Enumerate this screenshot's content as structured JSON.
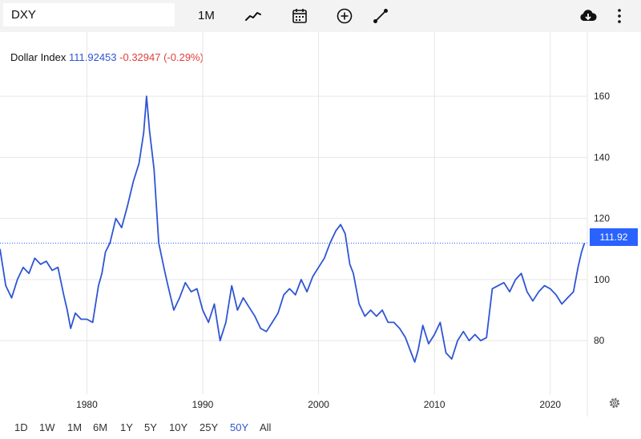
{
  "toolbar": {
    "symbol": "DXY",
    "interval": "1M",
    "icons": [
      "indicators-icon",
      "calendar-icon",
      "add-compare-icon",
      "drawing-tool-icon",
      "download-icon",
      "more-icon"
    ]
  },
  "legend": {
    "name": "Dollar Index",
    "price": "111.92453",
    "change": "-0.32947 (-0.29%)"
  },
  "last_price_label": "111.92",
  "colors": {
    "line": "#2f55d4",
    "accent": "#2962ff",
    "negative": "#e0403c",
    "grid": "#e6e6e6"
  },
  "range_buttons": [
    {
      "label": "1D"
    },
    {
      "label": "1W"
    },
    {
      "label": "1M"
    },
    {
      "label": "6M"
    },
    {
      "label": "1Y"
    },
    {
      "label": "5Y"
    },
    {
      "label": "10Y"
    },
    {
      "label": "25Y"
    },
    {
      "label": "50Y"
    },
    {
      "label": "All"
    }
  ],
  "active_range": "50Y",
  "chart_data": {
    "type": "line",
    "title": "",
    "xlabel": "",
    "ylabel": "",
    "xlim": [
      1972.5,
      2023.2
    ],
    "ylim": [
      62.5,
      181
    ],
    "x_ticks": [
      1980,
      1990,
      2000,
      2010,
      2020
    ],
    "y_ticks": [
      80,
      100,
      120,
      140,
      160
    ],
    "grid": true,
    "last_value": 111.92,
    "series": [
      {
        "name": "",
        "x": [
          1972.5,
          1973.0,
          1973.5,
          1974.0,
          1974.5,
          1975.0,
          1975.5,
          1976.0,
          1976.5,
          1977.0,
          1977.5,
          1978.0,
          1978.3,
          1978.6,
          1979.0,
          1979.5,
          1980.0,
          1980.5,
          1981.0,
          1981.3,
          1981.6,
          1982.0,
          1982.5,
          1983.0,
          1983.5,
          1984.0,
          1984.5,
          1984.9,
          1985.15,
          1985.4,
          1985.8,
          1986.2,
          1986.7,
          1987.0,
          1987.5,
          1988.0,
          1988.5,
          1989.0,
          1989.5,
          1990.0,
          1990.5,
          1991.0,
          1991.5,
          1992.0,
          1992.5,
          1993.0,
          1993.5,
          1994.0,
          1994.5,
          1995.0,
          1995.5,
          1996.0,
          1996.5,
          1997.0,
          1997.5,
          1998.0,
          1998.5,
          1999.0,
          1999.5,
          2000.0,
          2000.5,
          2001.0,
          2001.5,
          2001.9,
          2002.3,
          2002.7,
          2003.0,
          2003.5,
          2004.0,
          2004.5,
          2005.0,
          2005.5,
          2006.0,
          2006.5,
          2007.0,
          2007.5,
          2008.0,
          2008.3,
          2008.6,
          2009.0,
          2009.5,
          2010.0,
          2010.5,
          2011.0,
          2011.5,
          2012.0,
          2012.5,
          2013.0,
          2013.5,
          2014.0,
          2014.5,
          2015.0,
          2015.5,
          2016.0,
          2016.5,
          2017.0,
          2017.5,
          2018.0,
          2018.5,
          2019.0,
          2019.5,
          2020.0,
          2020.5,
          2021.0,
          2021.5,
          2022.0,
          2022.4,
          2022.7,
          2022.95
        ],
        "values": [
          110,
          98,
          94,
          100,
          104,
          102,
          107,
          105,
          106,
          103,
          104,
          95,
          90,
          84,
          89,
          87,
          87,
          86,
          98,
          102,
          109,
          112,
          120,
          117,
          124,
          132,
          138,
          148,
          160,
          149,
          136,
          112,
          103,
          98,
          90,
          94,
          99,
          96,
          97,
          90,
          86,
          92,
          80,
          86,
          98,
          90,
          94,
          91,
          88,
          84,
          83,
          86,
          89,
          95,
          97,
          95,
          100,
          96,
          101,
          104,
          107,
          112,
          116,
          118,
          115,
          105,
          102,
          92,
          88,
          90,
          88,
          90,
          86,
          86,
          84,
          81,
          76,
          73,
          77,
          85,
          79,
          82,
          86,
          76,
          74,
          80,
          83,
          80,
          82,
          80,
          81,
          97,
          98,
          99,
          96,
          100,
          102,
          96,
          93,
          96,
          98,
          97,
          95,
          92,
          94,
          96,
          104,
          109,
          111.92
        ]
      }
    ]
  }
}
